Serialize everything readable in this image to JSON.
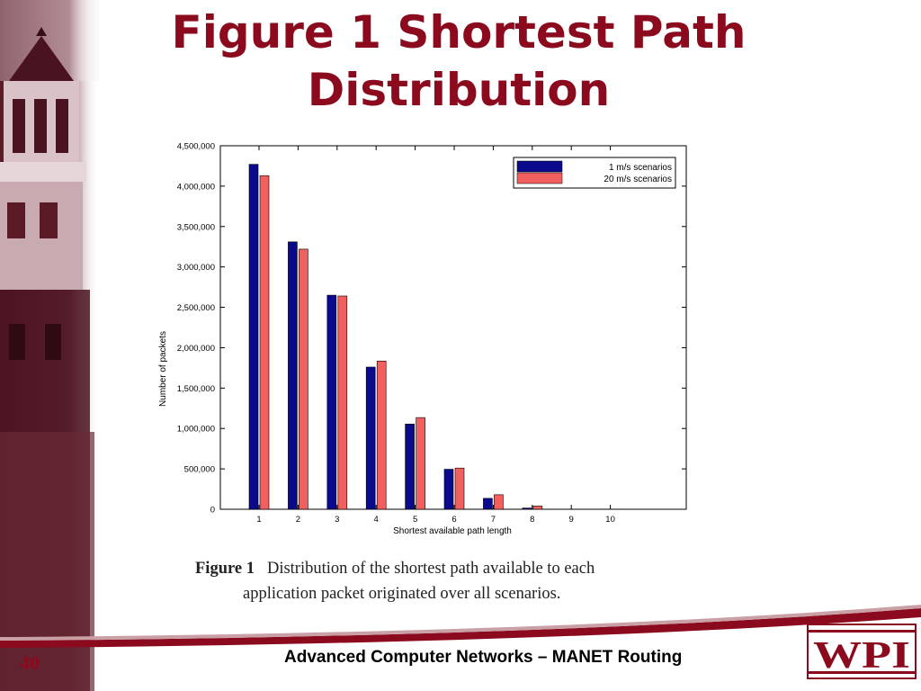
{
  "slide": {
    "title": "Figure 1 Shortest Path Distribution",
    "footer": "Advanced Computer Networks – MANET Routing",
    "slide_number": "40",
    "logo_text": "WPI",
    "caption_label": "Figure 1",
    "caption_line1": "Distribution of the shortest path available to each",
    "caption_line2": "application packet originated over all scenarios.",
    "accent_color": "#8b0a1e"
  },
  "chart_data": {
    "type": "bar",
    "title": "",
    "xlabel": "Shortest available path length",
    "ylabel": "Number of packets",
    "categories": [
      "1",
      "2",
      "3",
      "4",
      "5",
      "6",
      "7",
      "8",
      "9",
      "10"
    ],
    "series": [
      {
        "name": "1 m/s scenarios",
        "color": "#0a0a8c",
        "values": [
          4270000,
          3310000,
          2650000,
          1760000,
          1055000,
          495000,
          135000,
          15000,
          0,
          0
        ]
      },
      {
        "name": "20 m/s scenarios",
        "color": "#f25f5f",
        "values": [
          4130000,
          3220000,
          2640000,
          1835000,
          1135000,
          510000,
          180000,
          40000,
          0,
          0
        ]
      }
    ],
    "ylim": [
      0,
      4500000
    ],
    "y_ticks": [
      0,
      500000,
      1000000,
      1500000,
      2000000,
      2500000,
      3000000,
      3500000,
      4000000,
      4500000
    ],
    "y_tick_labels": [
      "0",
      "500,000",
      "1,000,000",
      "1,500,000",
      "2,000,000",
      "2,500,000",
      "3,000,000",
      "3,500,000",
      "4,000,000",
      "4,500,000"
    ],
    "legend_position": "top-right",
    "grid": false
  }
}
